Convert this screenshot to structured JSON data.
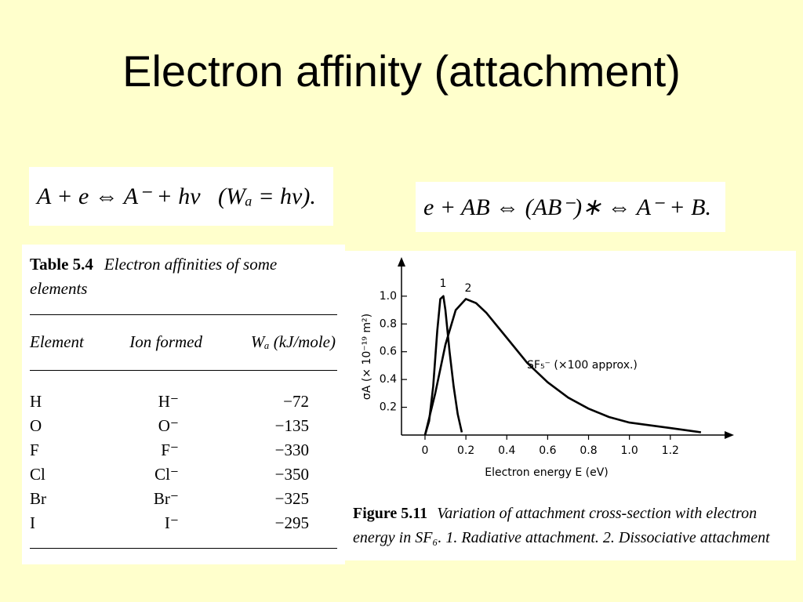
{
  "title": "Electron affinity (attachment)",
  "equations": [
    "A + e ⇔ A⁻ + hv   (Wₐ = hv).",
    "e + AB ⇔ (AB⁻)∗ ⇔ A⁻ + B."
  ],
  "table": {
    "label": "Table 5.4",
    "caption": "Electron affinities of some elements",
    "headers": [
      "Element",
      "Ion formed",
      "Wₐ (kJ/mole)"
    ],
    "rows": [
      [
        "H",
        "H⁻",
        "−72"
      ],
      [
        "O",
        "O⁻",
        "−135"
      ],
      [
        "F",
        "F⁻",
        "−330"
      ],
      [
        "Cl",
        "Cl⁻",
        "−350"
      ],
      [
        "Br",
        "Br⁻",
        "−325"
      ],
      [
        "I",
        "I⁻",
        "−295"
      ]
    ]
  },
  "figure_caption": {
    "label": "Figure 5.11",
    "text": "Variation of attachment cross-section with electron energy in SF₆. 1. Radiative attachment. 2. Dissociative attachment"
  },
  "chart_data": {
    "type": "line",
    "xlabel": "Electron energy E (eV)",
    "ylabel": "σA (× 10⁻¹⁹ m²)",
    "annotation": "SF₅⁻ (×100 approx.)",
    "xlim": [
      -0.115,
      1.5
    ],
    "ylim": [
      0,
      1.27
    ],
    "xticks": [
      0,
      0.2,
      0.4,
      0.6,
      0.8,
      {
        "value": 1,
        "label": "1.0"
      },
      1.2
    ],
    "yticks": [
      0.2,
      0.4,
      0.6,
      0.8,
      {
        "value": 1,
        "label": "1.0"
      }
    ],
    "series": [
      {
        "name": "1",
        "color": "#000000",
        "x": [
          0,
          0.02,
          0.04,
          0.06,
          0.075,
          0.09,
          0.1,
          0.12,
          0.14,
          0.16,
          0.18
        ],
        "values": [
          0,
          0.1,
          0.35,
          0.75,
          0.98,
          1.0,
          0.9,
          0.6,
          0.35,
          0.15,
          0.02
        ]
      },
      {
        "name": "2",
        "color": "#000000",
        "x": [
          0,
          0.05,
          0.1,
          0.15,
          0.2,
          0.25,
          0.3,
          0.4,
          0.5,
          0.6,
          0.7,
          0.8,
          0.9,
          1.0,
          1.1,
          1.2,
          1.3,
          1.35
        ],
        "values": [
          0,
          0.3,
          0.65,
          0.9,
          0.98,
          0.95,
          0.88,
          0.7,
          0.52,
          0.38,
          0.27,
          0.19,
          0.13,
          0.09,
          0.07,
          0.05,
          0.03,
          0.02
        ]
      }
    ]
  }
}
